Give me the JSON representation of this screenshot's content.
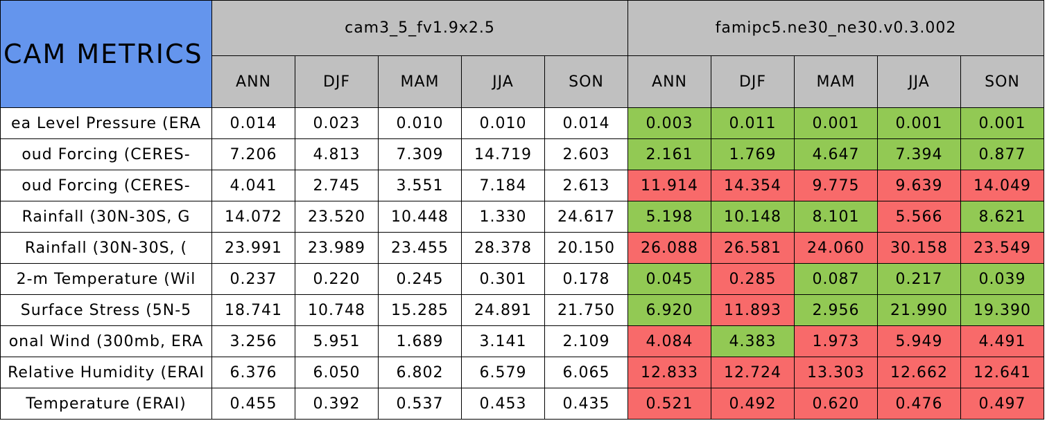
{
  "header": {
    "title": "CAM METRICS",
    "models": [
      {
        "name": "cam3_5_fv1.9x2.5",
        "seasons": [
          "ANN",
          "DJF",
          "MAM",
          "JJA",
          "SON"
        ]
      },
      {
        "name": "famipc5.ne30_ne30.v0.3.002",
        "seasons": [
          "ANN",
          "DJF",
          "MAM",
          "JJA",
          "SON"
        ]
      }
    ]
  },
  "table": {
    "rows": [
      {
        "label": "ea Level Pressure (ERA",
        "values": [
          "0.014",
          "0.023",
          "0.010",
          "0.010",
          "0.014",
          "0.003",
          "0.011",
          "0.001",
          "0.001",
          "0.001"
        ],
        "fills": [
          "#ffffff",
          "#ffffff",
          "#ffffff",
          "#ffffff",
          "#ffffff",
          "#92c954",
          "#92c954",
          "#92c954",
          "#92c954",
          "#92c954"
        ]
      },
      {
        "label": "oud Forcing (CERES-",
        "values": [
          "7.206",
          "4.813",
          "7.309",
          "14.719",
          "2.603",
          "2.161",
          "1.769",
          "4.647",
          "7.394",
          "0.877"
        ],
        "fills": [
          "#ffffff",
          "#ffffff",
          "#ffffff",
          "#ffffff",
          "#ffffff",
          "#92c954",
          "#92c954",
          "#92c954",
          "#92c954",
          "#92c954"
        ]
      },
      {
        "label": "oud Forcing (CERES-",
        "values": [
          "4.041",
          "2.745",
          "3.551",
          "7.184",
          "2.613",
          "11.914",
          "14.354",
          "9.775",
          "9.639",
          "14.049"
        ],
        "fills": [
          "#ffffff",
          "#ffffff",
          "#ffffff",
          "#ffffff",
          "#ffffff",
          "#f86a6a",
          "#f86a6a",
          "#f86a6a",
          "#f86a6a",
          "#f86a6a"
        ]
      },
      {
        "label": "Rainfall (30N-30S, G",
        "values": [
          "14.072",
          "23.520",
          "10.448",
          "1.330",
          "24.617",
          "5.198",
          "10.148",
          "8.101",
          "5.566",
          "8.621"
        ],
        "fills": [
          "#ffffff",
          "#ffffff",
          "#ffffff",
          "#ffffff",
          "#ffffff",
          "#92c954",
          "#92c954",
          "#92c954",
          "#f86a6a",
          "#92c954"
        ]
      },
      {
        "label": "Rainfall (30N-30S, (",
        "values": [
          "23.991",
          "23.989",
          "23.455",
          "28.378",
          "20.150",
          "26.088",
          "26.581",
          "24.060",
          "30.158",
          "23.549"
        ],
        "fills": [
          "#ffffff",
          "#ffffff",
          "#ffffff",
          "#ffffff",
          "#ffffff",
          "#f86a6a",
          "#f86a6a",
          "#f86a6a",
          "#f86a6a",
          "#f86a6a"
        ]
      },
      {
        "label": "2-m Temperature (Wil",
        "values": [
          "0.237",
          "0.220",
          "0.245",
          "0.301",
          "0.178",
          "0.045",
          "0.285",
          "0.087",
          "0.217",
          "0.039"
        ],
        "fills": [
          "#ffffff",
          "#ffffff",
          "#ffffff",
          "#ffffff",
          "#ffffff",
          "#92c954",
          "#f86a6a",
          "#92c954",
          "#92c954",
          "#92c954"
        ]
      },
      {
        "label": "Surface Stress (5N-5",
        "values": [
          "18.741",
          "10.748",
          "15.285",
          "24.891",
          "21.750",
          "6.920",
          "11.893",
          "2.956",
          "21.990",
          "19.390"
        ],
        "fills": [
          "#ffffff",
          "#ffffff",
          "#ffffff",
          "#ffffff",
          "#ffffff",
          "#92c954",
          "#f86a6a",
          "#92c954",
          "#92c954",
          "#92c954"
        ]
      },
      {
        "label": "onal Wind (300mb, ERA",
        "values": [
          "3.256",
          "5.951",
          "1.689",
          "3.141",
          "2.109",
          "4.084",
          "4.383",
          "1.973",
          "5.949",
          "4.491"
        ],
        "fills": [
          "#ffffff",
          "#ffffff",
          "#ffffff",
          "#ffffff",
          "#ffffff",
          "#f86a6a",
          "#92c954",
          "#f86a6a",
          "#f86a6a",
          "#f86a6a"
        ]
      },
      {
        "label": "Relative Humidity (ERAI",
        "values": [
          "6.376",
          "6.050",
          "6.802",
          "6.579",
          "6.065",
          "12.833",
          "12.724",
          "13.303",
          "12.662",
          "12.641"
        ],
        "fills": [
          "#ffffff",
          "#ffffff",
          "#ffffff",
          "#ffffff",
          "#ffffff",
          "#f86a6a",
          "#f86a6a",
          "#f86a6a",
          "#f86a6a",
          "#f86a6a"
        ]
      },
      {
        "label": "Temperature (ERAI)",
        "values": [
          "0.455",
          "0.392",
          "0.537",
          "0.453",
          "0.435",
          "0.521",
          "0.492",
          "0.620",
          "0.476",
          "0.497"
        ],
        "fills": [
          "#ffffff",
          "#ffffff",
          "#ffffff",
          "#ffffff",
          "#ffffff",
          "#f86a6a",
          "#f86a6a",
          "#f86a6a",
          "#f86a6a",
          "#f86a6a"
        ]
      }
    ]
  }
}
